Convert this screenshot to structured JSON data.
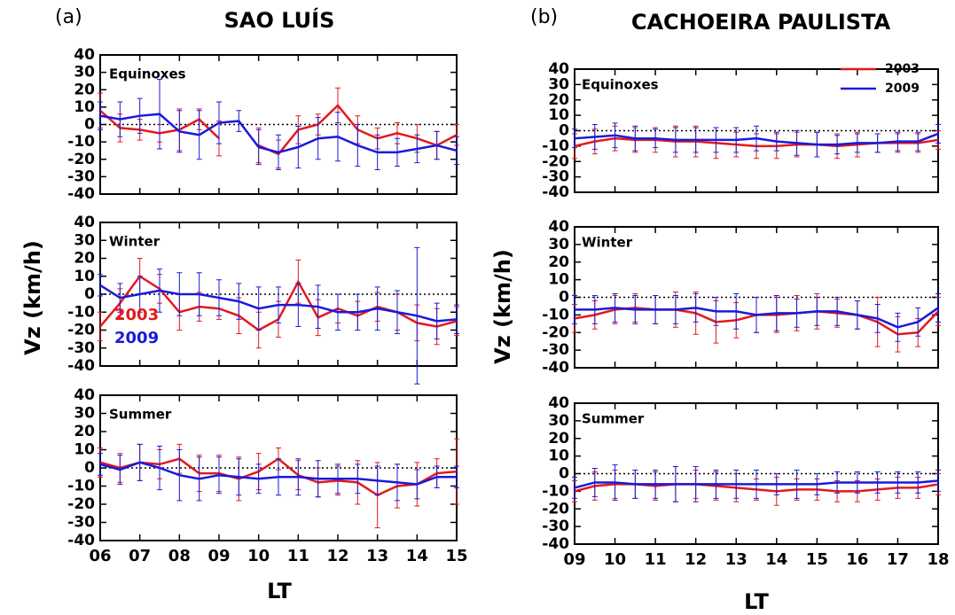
{
  "panels": [
    {
      "label": "(a)",
      "title": "SAO LUÍS",
      "y_label": "Vz (km/h)",
      "x_label": "LT"
    },
    {
      "label": "(b)",
      "title": "CACHOEIRA PAULISTA",
      "y_label": "Vz (km/h)",
      "x_label": "LT"
    }
  ],
  "chart_data": [
    {
      "type": "line",
      "annotation": "Equinoxes",
      "x": [
        6,
        6.5,
        7,
        7.5,
        8,
        8.5,
        9,
        9.5,
        10,
        10.5,
        11,
        11.5,
        12,
        12.5,
        13,
        13.5,
        14,
        14.5,
        15
      ],
      "xlim": [
        6,
        15
      ],
      "xticks": [
        6,
        7,
        8,
        9,
        10,
        11,
        12,
        13,
        14,
        15
      ],
      "x_tick_labels": false,
      "ylim": [
        -40,
        40
      ],
      "yticks": [
        -40,
        -30,
        -20,
        -10,
        0,
        10,
        20,
        30,
        40
      ],
      "series": [
        {
          "color": "#e3191c",
          "values": [
            8,
            -2,
            -3,
            -5,
            -3,
            3,
            -8,
            null,
            -12,
            -17,
            -3,
            0,
            11,
            -3,
            -8,
            -5,
            -8,
            -12,
            -6
          ],
          "errors": [
            10,
            8,
            6,
            5,
            12,
            6,
            10,
            null,
            10,
            8,
            8,
            6,
            10,
            8,
            6,
            6,
            8,
            8,
            6
          ]
        },
        {
          "color": "#1a1adb",
          "values": [
            5,
            3,
            5,
            6,
            -4,
            -6,
            1,
            2,
            -13,
            -16,
            -13,
            -8,
            -7,
            -12,
            -16,
            -16,
            -14,
            -12,
            -15
          ],
          "errors": [
            8,
            10,
            10,
            20,
            12,
            14,
            12,
            6,
            10,
            10,
            12,
            12,
            14,
            12,
            10,
            8,
            8,
            8,
            8
          ]
        }
      ]
    },
    {
      "type": "line",
      "annotation": "Winter",
      "x": [
        6,
        6.5,
        7,
        7.5,
        8,
        8.5,
        9,
        9.5,
        10,
        10.5,
        11,
        11.5,
        12,
        12.5,
        13,
        13.5,
        14,
        14.5,
        15
      ],
      "xlim": [
        6,
        15
      ],
      "xticks": [
        6,
        7,
        8,
        9,
        10,
        11,
        12,
        13,
        14,
        15
      ],
      "x_tick_labels": false,
      "ylim": [
        -40,
        40
      ],
      "yticks": [
        -40,
        -30,
        -20,
        -10,
        0,
        10,
        20,
        30,
        40
      ],
      "legend": "lower-left",
      "series": [
        {
          "name": "2003",
          "color": "#e3191c",
          "values": [
            -18,
            -5,
            10,
            3,
            -10,
            -7,
            -8,
            -12,
            -20,
            -14,
            7,
            -13,
            -8,
            -12,
            -7,
            -10,
            -16,
            -18,
            -15
          ],
          "errors": [
            8,
            8,
            10,
            8,
            10,
            8,
            6,
            10,
            10,
            10,
            12,
            10,
            8,
            8,
            8,
            10,
            10,
            10,
            8
          ]
        },
        {
          "name": "2009",
          "color": "#1a1adb",
          "values": [
            5,
            -2,
            0,
            2,
            0,
            0,
            -2,
            -4,
            -8,
            -6,
            -6,
            -7,
            -10,
            -10,
            -8,
            -10,
            -12,
            -15,
            -14
          ],
          "errors": [
            6,
            8,
            10,
            12,
            12,
            12,
            10,
            10,
            12,
            10,
            12,
            12,
            10,
            10,
            12,
            12,
            38,
            10,
            8
          ]
        }
      ]
    },
    {
      "type": "line",
      "annotation": "Summer",
      "x": [
        6,
        6.5,
        7,
        7.5,
        8,
        8.5,
        9,
        9.5,
        10,
        10.5,
        11,
        11.5,
        12,
        12.5,
        13,
        13.5,
        14,
        14.5,
        15
      ],
      "xlim": [
        6,
        15
      ],
      "xticks": [
        {
          "value": 6,
          "label": "06"
        },
        {
          "value": 7,
          "label": "07"
        },
        {
          "value": 8,
          "label": "08"
        },
        {
          "value": 9,
          "label": "09"
        },
        10,
        11,
        12,
        13,
        14,
        15
      ],
      "x_tick_labels": true,
      "ylim": [
        -40,
        40
      ],
      "yticks": [
        -40,
        -30,
        -20,
        -10,
        0,
        10,
        20,
        30,
        40
      ],
      "series": [
        {
          "color": "#e3191c",
          "values": [
            3,
            0,
            3,
            2,
            5,
            -3,
            -3,
            -6,
            -2,
            5,
            -4,
            -8,
            -7,
            -8,
            -15,
            -10,
            -9,
            -3,
            -2
          ],
          "errors": [
            8,
            8,
            10,
            8,
            8,
            10,
            10,
            12,
            10,
            6,
            8,
            8,
            8,
            12,
            18,
            12,
            12,
            8,
            18
          ]
        },
        {
          "color": "#1a1adb",
          "values": [
            2,
            -1,
            3,
            0,
            -4,
            -6,
            -4,
            -5,
            -6,
            -5,
            -5,
            -6,
            -6,
            -6,
            -7,
            -8,
            -9,
            -5,
            -5
          ],
          "errors": [
            6,
            8,
            10,
            12,
            14,
            12,
            10,
            10,
            8,
            10,
            10,
            10,
            8,
            8,
            8,
            10,
            8,
            6,
            6
          ]
        }
      ]
    },
    {
      "type": "line",
      "annotation": "Equinoxes",
      "x": [
        9,
        9.5,
        10,
        10.5,
        11,
        11.5,
        12,
        12.5,
        13,
        13.5,
        14,
        14.5,
        15,
        15.5,
        16,
        16.5,
        17,
        17.5,
        18
      ],
      "xlim": [
        9,
        18
      ],
      "xticks": [
        9,
        10,
        11,
        12,
        13,
        14,
        15,
        16,
        17,
        18
      ],
      "x_tick_labels": false,
      "ylim": [
        -40,
        40
      ],
      "yticks": [
        -40,
        -30,
        -20,
        -10,
        0,
        10,
        20,
        30,
        40
      ],
      "legend": "upper-right",
      "series": [
        {
          "name": "2003",
          "color": "#e3191c",
          "values": [
            -10,
            -7,
            -5,
            -6,
            -6,
            -7,
            -7,
            -8,
            -9,
            -10,
            -10,
            -9,
            -9,
            -10,
            -9,
            -8,
            -8,
            -8,
            -6
          ],
          "errors": [
            8,
            8,
            8,
            8,
            8,
            10,
            10,
            10,
            8,
            8,
            8,
            8,
            8,
            8,
            8,
            6,
            6,
            6,
            6
          ]
        },
        {
          "name": "2009",
          "color": "#1a1adb",
          "values": [
            -5,
            -4,
            -3,
            -5,
            -5,
            -6,
            -6,
            -6,
            -6,
            -5,
            -7,
            -8,
            -9,
            -9,
            -8,
            -8,
            -7,
            -7,
            -2
          ],
          "errors": [
            6,
            8,
            8,
            8,
            6,
            8,
            8,
            8,
            8,
            8,
            6,
            8,
            8,
            6,
            6,
            6,
            6,
            6,
            6
          ]
        }
      ]
    },
    {
      "type": "line",
      "annotation": "Winter",
      "x": [
        9,
        9.5,
        10,
        10.5,
        11,
        11.5,
        12,
        12.5,
        13,
        13.5,
        14,
        14.5,
        15,
        15.5,
        16,
        16.5,
        17,
        17.5,
        18
      ],
      "xlim": [
        9,
        18
      ],
      "xticks": [
        9,
        10,
        11,
        12,
        13,
        14,
        15,
        16,
        17,
        18
      ],
      "x_tick_labels": false,
      "ylim": [
        -40,
        40
      ],
      "yticks": [
        -40,
        -30,
        -20,
        -10,
        0,
        10,
        20,
        30,
        40
      ],
      "series": [
        {
          "color": "#e3191c",
          "values": [
            -12,
            -10,
            -7,
            -6,
            -7,
            -7,
            -9,
            -14,
            -13,
            -10,
            -10,
            -9,
            -8,
            -9,
            -10,
            -14,
            -21,
            -20,
            -8
          ],
          "errors": [
            8,
            8,
            8,
            8,
            8,
            10,
            12,
            12,
            10,
            10,
            10,
            10,
            10,
            8,
            8,
            14,
            10,
            8,
            8
          ]
        },
        {
          "color": "#1a1adb",
          "values": [
            -7,
            -7,
            -6,
            -7,
            -7,
            -7,
            -6,
            -8,
            -8,
            -10,
            -9,
            -9,
            -8,
            -8,
            -10,
            -12,
            -17,
            -14,
            -6
          ],
          "errors": [
            8,
            8,
            8,
            8,
            8,
            8,
            8,
            8,
            10,
            10,
            10,
            8,
            8,
            8,
            8,
            8,
            8,
            8,
            8
          ]
        }
      ]
    },
    {
      "type": "line",
      "annotation": "Summer",
      "x": [
        9,
        9.5,
        10,
        10.5,
        11,
        11.5,
        12,
        12.5,
        13,
        13.5,
        14,
        14.5,
        15,
        15.5,
        16,
        16.5,
        17,
        17.5,
        18
      ],
      "xlim": [
        9,
        18
      ],
      "xticks": [
        {
          "value": 9,
          "label": "09"
        },
        10,
        11,
        12,
        13,
        14,
        15,
        16,
        17,
        18
      ],
      "x_tick_labels": true,
      "ylim": [
        -40,
        40
      ],
      "yticks": [
        -40,
        -30,
        -20,
        -10,
        0,
        10,
        20,
        30,
        40
      ],
      "series": [
        {
          "color": "#e3191c",
          "values": [
            -10,
            -7,
            -6,
            -6,
            -7,
            -6,
            -6,
            -7,
            -8,
            -9,
            -10,
            -9,
            -9,
            -10,
            -10,
            -9,
            -8,
            -8,
            -6
          ],
          "errors": [
            6,
            8,
            8,
            8,
            8,
            10,
            8,
            8,
            8,
            6,
            8,
            6,
            6,
            6,
            6,
            6,
            6,
            6,
            6
          ]
        },
        {
          "color": "#1a1adb",
          "values": [
            -8,
            -5,
            -5,
            -6,
            -6,
            -6,
            -6,
            -6,
            -6,
            -6,
            -6,
            -6,
            -6,
            -5,
            -5,
            -5,
            -5,
            -5,
            -4
          ],
          "errors": [
            6,
            8,
            10,
            8,
            8,
            10,
            10,
            8,
            8,
            8,
            6,
            8,
            6,
            6,
            6,
            6,
            6,
            6,
            6
          ]
        }
      ]
    }
  ]
}
